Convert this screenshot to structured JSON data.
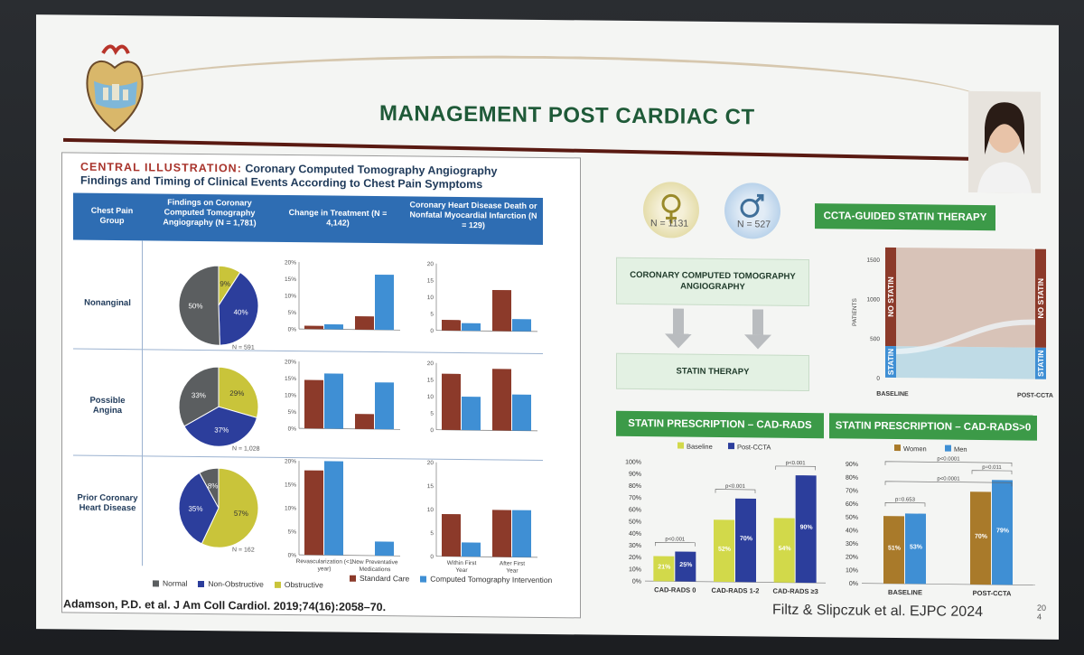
{
  "slide": {
    "title": "MANAGEMENT POST CARDIAC CT",
    "citation_left": "Adamson, P.D. et al. J Am Coll Cardiol. 2019;74(16):2058–70.",
    "citation_right": "Filtz & Slipczuk et al. EJPC 2024",
    "page_number_line1": "20",
    "page_number_line2": "4"
  },
  "central_illustration": {
    "title_key": "CENTRAL ILLUSTRATION:",
    "title_rest": "Coronary Computed Tomography Angiography Findings and Timing of Clinical Events According to Chest Pain Symptoms",
    "columns": {
      "group": "Chest Pain Group",
      "findings": "Findings on Coronary Computed Tomography Angiography (N = 1,781)",
      "treatment": "Change in Treatment (N = 4,142)",
      "events": "Coronary Heart Disease Death or Nonfatal Myocardial Infarction (N = 129)"
    },
    "rows": [
      {
        "label": "Nonanginal",
        "n": "N = 591"
      },
      {
        "label": "Possible Angina",
        "n": "N = 1,028"
      },
      {
        "label": "Prior Coronary Heart Disease",
        "n": "N = 162"
      }
    ],
    "pie_legend": [
      "Normal",
      "Non-Obstructive",
      "Obstructive"
    ],
    "bar_legend": [
      "Standard Care",
      "Computed Tomography Intervention"
    ],
    "treatment_x_labels": [
      "Revascularization (<1 year)",
      "New Preventative Medications"
    ],
    "events_x_labels": [
      "Within First Year",
      "After First Year"
    ],
    "colors": {
      "normal": "#5b5e60",
      "nonobstructive": "#2c3e9c",
      "obstructive": "#c9c43a",
      "standard": "#8c3a2a",
      "cti": "#3f8fd4",
      "band": "#2e6db3"
    }
  },
  "flow": {
    "female_n": "N = 1131",
    "male_n": "N = 527",
    "box_ccta": "CORONARY COMPUTED TOMOGRAPHY ANGIOGRAPHY",
    "box_statin": "STATIN THERAPY"
  },
  "sankey": {
    "banner": "CCTA-GUIDED STATIN THERAPY",
    "y_label": "PATIENTS",
    "y_ticks": [
      "1500",
      "1000",
      "500",
      "0"
    ],
    "x_labels": [
      "BASELINE",
      "POST-CCTA"
    ],
    "no_statin": "NO STATIN",
    "statin": "STATIN"
  },
  "banners": {
    "cadrads": "STATIN PRESCRIPTION – CAD-RADS",
    "cadrads_gt0": "STATIN PRESCRIPTION – CAD-RADS>0"
  },
  "chart_data": [
    {
      "type": "pie",
      "title": "Nonanginal",
      "categories": [
        "Normal",
        "Non-Obstructive",
        "Obstructive"
      ],
      "values": [
        50,
        40,
        9
      ]
    },
    {
      "type": "pie",
      "title": "Possible Angina",
      "categories": [
        "Normal",
        "Non-Obstructive",
        "Obstructive"
      ],
      "values": [
        33,
        37,
        29
      ]
    },
    {
      "type": "pie",
      "title": "Prior Coronary Heart Disease",
      "categories": [
        "Normal",
        "Non-Obstructive",
        "Obstructive"
      ],
      "values": [
        8,
        35,
        57
      ]
    },
    {
      "type": "bar",
      "title": "Change in Treatment – Nonanginal",
      "categories": [
        "Revascularization (<1 year)",
        "New Preventative Medications"
      ],
      "series": [
        {
          "name": "Standard Care",
          "values": [
            1,
            4
          ]
        },
        {
          "name": "Computed Tomography Intervention",
          "values": [
            1.5,
            16.5
          ]
        }
      ],
      "yticks": [
        "0%",
        "5%",
        "10%",
        "15%",
        "20%"
      ],
      "ylim": [
        0,
        20
      ]
    },
    {
      "type": "bar",
      "title": "Change in Treatment – Possible Angina",
      "categories": [
        "Revascularization (<1 year)",
        "New Preventative Medications"
      ],
      "series": [
        {
          "name": "Standard Care",
          "values": [
            14.5,
            4.5
          ]
        },
        {
          "name": "Computed Tomography Intervention",
          "values": [
            16.5,
            14
          ]
        }
      ],
      "yticks": [
        "0%",
        "5%",
        "10%",
        "15%",
        "20%"
      ],
      "ylim": [
        0,
        20
      ]
    },
    {
      "type": "bar",
      "title": "Change in Treatment – Prior Coronary Heart Disease",
      "categories": [
        "Revascularization (<1 year)",
        "New Preventative Medications"
      ],
      "series": [
        {
          "name": "Standard Care",
          "values": [
            18,
            0
          ]
        },
        {
          "name": "Computed Tomography Intervention",
          "values": [
            20,
            3
          ]
        }
      ],
      "yticks": [
        "0%",
        "5%",
        "10%",
        "15%",
        "20%"
      ],
      "ylim": [
        0,
        20
      ]
    },
    {
      "type": "bar",
      "title": "CHD Death or MI – Nonanginal",
      "categories": [
        "Within First Year",
        "After First Year"
      ],
      "series": [
        {
          "name": "Standard Care",
          "values": [
            3.5,
            13.5
          ]
        },
        {
          "name": "Computed Tomography Intervention",
          "values": [
            2.5,
            4
          ]
        }
      ],
      "yticks": [
        "0",
        "5",
        "10",
        "15",
        "20"
      ],
      "ylim": [
        0,
        22
      ]
    },
    {
      "type": "bar",
      "title": "CHD Death or MI – Possible Angina",
      "categories": [
        "Within First Year",
        "After First Year"
      ],
      "series": [
        {
          "name": "Standard Care",
          "values": [
            21,
            23
          ]
        },
        {
          "name": "Computed Tomography Intervention",
          "values": [
            12.5,
            13.5
          ]
        }
      ],
      "yticks": [
        "0",
        "5",
        "10",
        "15",
        "20"
      ],
      "ylim": [
        0,
        25
      ]
    },
    {
      "type": "bar",
      "title": "CHD Death or MI – Prior Coronary Heart Disease",
      "categories": [
        "Within First Year",
        "After First Year"
      ],
      "series": [
        {
          "name": "Standard Care",
          "values": [
            9,
            10
          ]
        },
        {
          "name": "Computed Tomography Intervention",
          "values": [
            3,
            10
          ]
        }
      ],
      "yticks": [
        "0",
        "5",
        "10",
        "15",
        "20"
      ],
      "ylim": [
        0,
        20
      ]
    },
    {
      "type": "area",
      "title": "CCTA-GUIDED STATIN THERAPY",
      "categories": [
        "BASELINE",
        "POST-CCTA"
      ],
      "series": [
        {
          "name": "STATIN",
          "values": [
            400,
            400
          ]
        },
        {
          "name": "NO STATIN",
          "values": [
            1250,
            1250
          ]
        }
      ],
      "ylabel": "PATIENTS",
      "ylim": [
        0,
        1650
      ]
    },
    {
      "type": "bar",
      "title": "STATIN PRESCRIPTION – CAD-RADS",
      "categories": [
        "CAD-RADS 0",
        "CAD-RADS 1-2",
        "CAD-RADS ≥3"
      ],
      "series": [
        {
          "name": "Baseline",
          "values": [
            21,
            52,
            54
          ],
          "labels": [
            "21%",
            "52%",
            "54%"
          ]
        },
        {
          "name": "Post-CCTA",
          "values": [
            25,
            70,
            90
          ],
          "labels": [
            "25%",
            "70%",
            "90%"
          ]
        }
      ],
      "yticks": [
        "0%",
        "10%",
        "20%",
        "30%",
        "40%",
        "50%",
        "60%",
        "70%",
        "80%",
        "90%",
        "100%"
      ],
      "ylim": [
        0,
        100
      ],
      "annotations": [
        "p<0.001",
        "p<0.001",
        "p<0.001"
      ]
    },
    {
      "type": "bar",
      "title": "STATIN PRESCRIPTION – CAD-RADS>0",
      "categories": [
        "BASELINE",
        "POST-CCTA"
      ],
      "series": [
        {
          "name": "Women",
          "values": [
            51,
            70
          ],
          "labels": [
            "51%",
            "70%"
          ]
        },
        {
          "name": "Men",
          "values": [
            53,
            79
          ],
          "labels": [
            "53%",
            "79%"
          ]
        }
      ],
      "yticks": [
        "0%",
        "10%",
        "20%",
        "30%",
        "40%",
        "50%",
        "60%",
        "70%",
        "80%",
        "90%"
      ],
      "ylim": [
        0,
        90
      ],
      "annotations": [
        "p=0.653",
        "p=0.011",
        "p<0.0001",
        "p<0.0001"
      ]
    }
  ]
}
